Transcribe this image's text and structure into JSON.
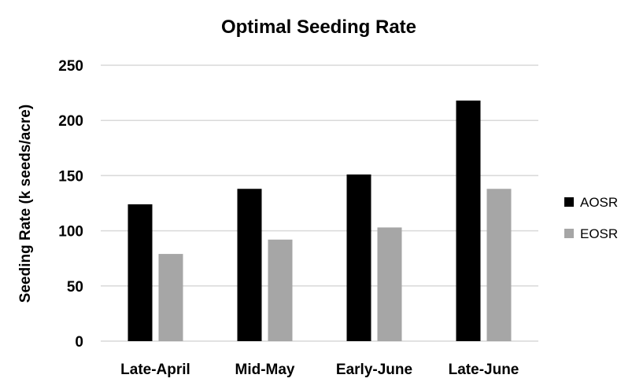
{
  "chart_data": {
    "type": "bar",
    "title": "Optimal Seeding Rate",
    "xlabel": "",
    "ylabel": "Seeding Rate (k seeds/acre)",
    "categories": [
      "Late-April",
      "Mid-May",
      "Early-June",
      "Late-June"
    ],
    "series": [
      {
        "name": "AOSR",
        "values": [
          124,
          138,
          151,
          218
        ],
        "color": "#000000"
      },
      {
        "name": "EOSR",
        "values": [
          79,
          92,
          103,
          138
        ],
        "color": "#a6a6a6"
      }
    ],
    "ylim": [
      0,
      250
    ],
    "yticks": [
      0,
      50,
      100,
      150,
      200,
      250
    ],
    "grid": true,
    "legend_position": "right"
  }
}
